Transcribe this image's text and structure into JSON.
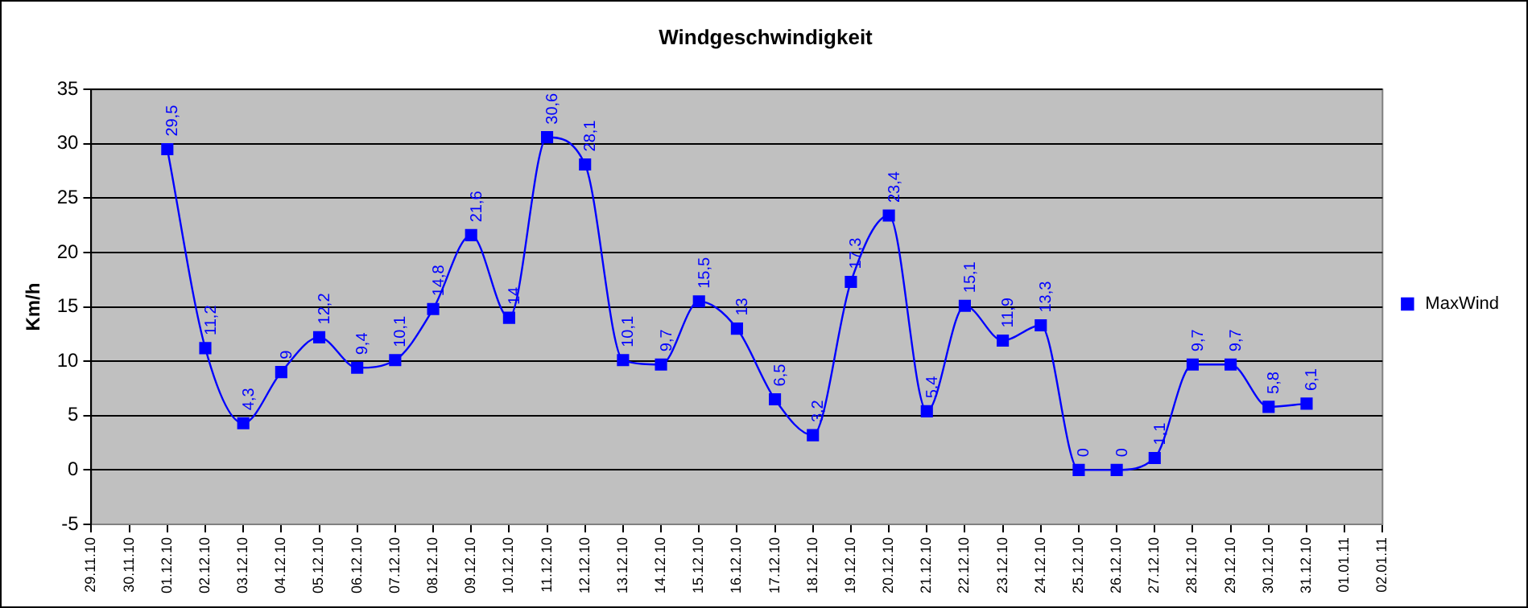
{
  "chart_data": {
    "type": "line",
    "title": "Windgeschwindigkeit",
    "ylabel": "Km/h",
    "categories": [
      "29.11.10",
      "30.11.10",
      "01.12.10",
      "02.12.10",
      "03.12.10",
      "04.12.10",
      "05.12.10",
      "06.12.10",
      "07.12.10",
      "08.12.10",
      "09.12.10",
      "10.12.10",
      "11.12.10",
      "12.12.10",
      "13.12.10",
      "14.12.10",
      "15.12.10",
      "16.12.10",
      "17.12.10",
      "18.12.10",
      "19.12.10",
      "20.12.10",
      "21.12.10",
      "22.12.10",
      "23.12.10",
      "24.12.10",
      "25.12.10",
      "26.12.10",
      "27.12.10",
      "28.12.10",
      "29.12.10",
      "30.12.10",
      "31.12.10",
      "01.01.11",
      "02.01.11"
    ],
    "series": [
      {
        "name": "MaxWind",
        "color": "#0000ff",
        "values": [
          null,
          null,
          29.5,
          11.2,
          4.3,
          9,
          12.2,
          9.4,
          10.1,
          14.8,
          21.6,
          14,
          30.6,
          28.1,
          10.1,
          9.7,
          15.5,
          13,
          6.5,
          3.2,
          17.3,
          23.4,
          5.4,
          15.1,
          11.9,
          13.3,
          0,
          0,
          1.1,
          9.7,
          9.7,
          5.8,
          6.1,
          null,
          null
        ],
        "value_labels": [
          null,
          null,
          "29,5",
          "11,2",
          "4,3",
          "9",
          "12,2",
          "9,4",
          "10,1",
          "14,8",
          "21,6",
          "14",
          "30,6",
          "28,1",
          "10,1",
          "9,7",
          "15,5",
          "13",
          "6,5",
          "3,2",
          "17,3",
          "23,4",
          "5,4",
          "15,1",
          "11,9",
          "13,3",
          "0",
          "0",
          "1,1",
          "9,7",
          "9,7",
          "5,8",
          "6,1",
          null,
          null
        ]
      }
    ],
    "ylim": [
      -5,
      35
    ],
    "yticks": [
      -5,
      0,
      5,
      10,
      15,
      20,
      25,
      30,
      35
    ],
    "grid": "y",
    "legend": "right",
    "marker": "square",
    "line_style": "solid"
  }
}
